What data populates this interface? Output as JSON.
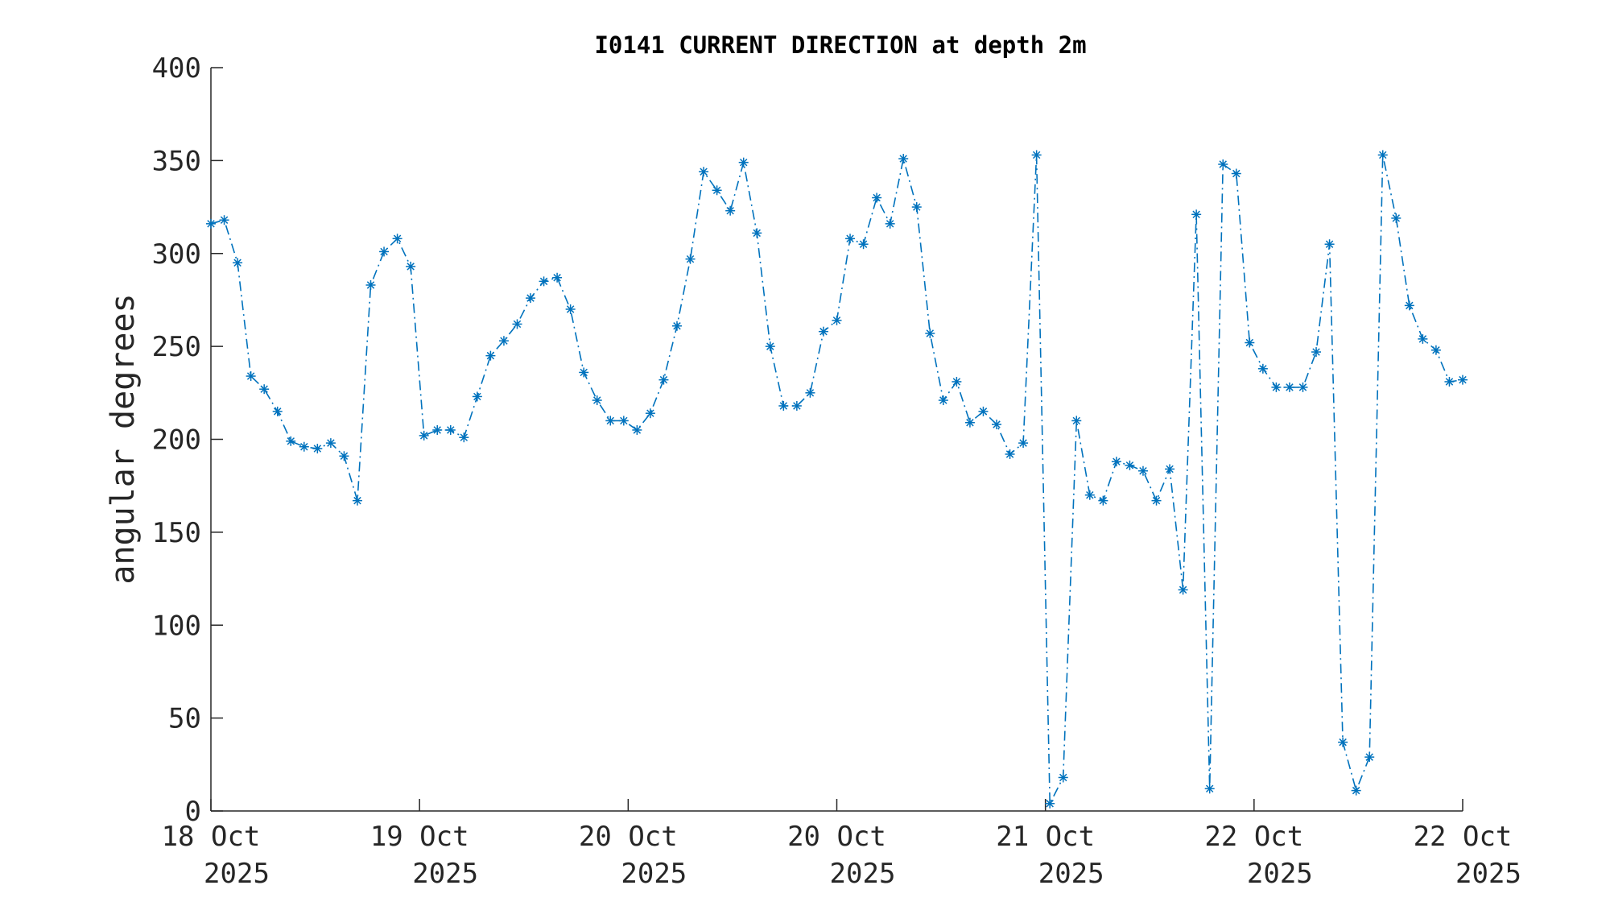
{
  "chart_data": {
    "type": "line",
    "title": "I0141 CURRENT DIRECTION at depth 2m",
    "ylabel": "angular degrees",
    "xlabel": "",
    "ylim": [
      0,
      400
    ],
    "yticks": [
      0,
      50,
      100,
      150,
      200,
      250,
      300,
      350,
      400
    ],
    "xticks": [
      {
        "line1": "18 Oct",
        "line2": "2025"
      },
      {
        "line1": "19 Oct",
        "line2": "2025"
      },
      {
        "line1": "20 Oct",
        "line2": "2025"
      },
      {
        "line1": "20 Oct",
        "line2": "2025"
      },
      {
        "line1": "21 Oct",
        "line2": "2025"
      },
      {
        "line1": "22 Oct",
        "line2": "2025"
      },
      {
        "line1": "22 Oct",
        "line2": "2025"
      }
    ],
    "grid": false,
    "line_style": "dash-dot",
    "marker": "asterisk",
    "series": [
      {
        "color": "#0072BD",
        "values": [
          316,
          318,
          295,
          234,
          227,
          215,
          199,
          196,
          195,
          198,
          191,
          167,
          283,
          301,
          308,
          293,
          202,
          205,
          205,
          201,
          223,
          245,
          253,
          262,
          276,
          285,
          287,
          270,
          236,
          221,
          210,
          210,
          205,
          214,
          232,
          261,
          297,
          344,
          334,
          323,
          349,
          311,
          250,
          218,
          218,
          225,
          258,
          264,
          308,
          305,
          330,
          316,
          351,
          325,
          257,
          221,
          231,
          209,
          215,
          208,
          192,
          198,
          353,
          4,
          18,
          210,
          170,
          167,
          188,
          186,
          183,
          167,
          184,
          119,
          321,
          12,
          348,
          343,
          252,
          238,
          228,
          228,
          228,
          247,
          305,
          37,
          11,
          29,
          353,
          319,
          272,
          254,
          248,
          231,
          232
        ]
      }
    ]
  }
}
